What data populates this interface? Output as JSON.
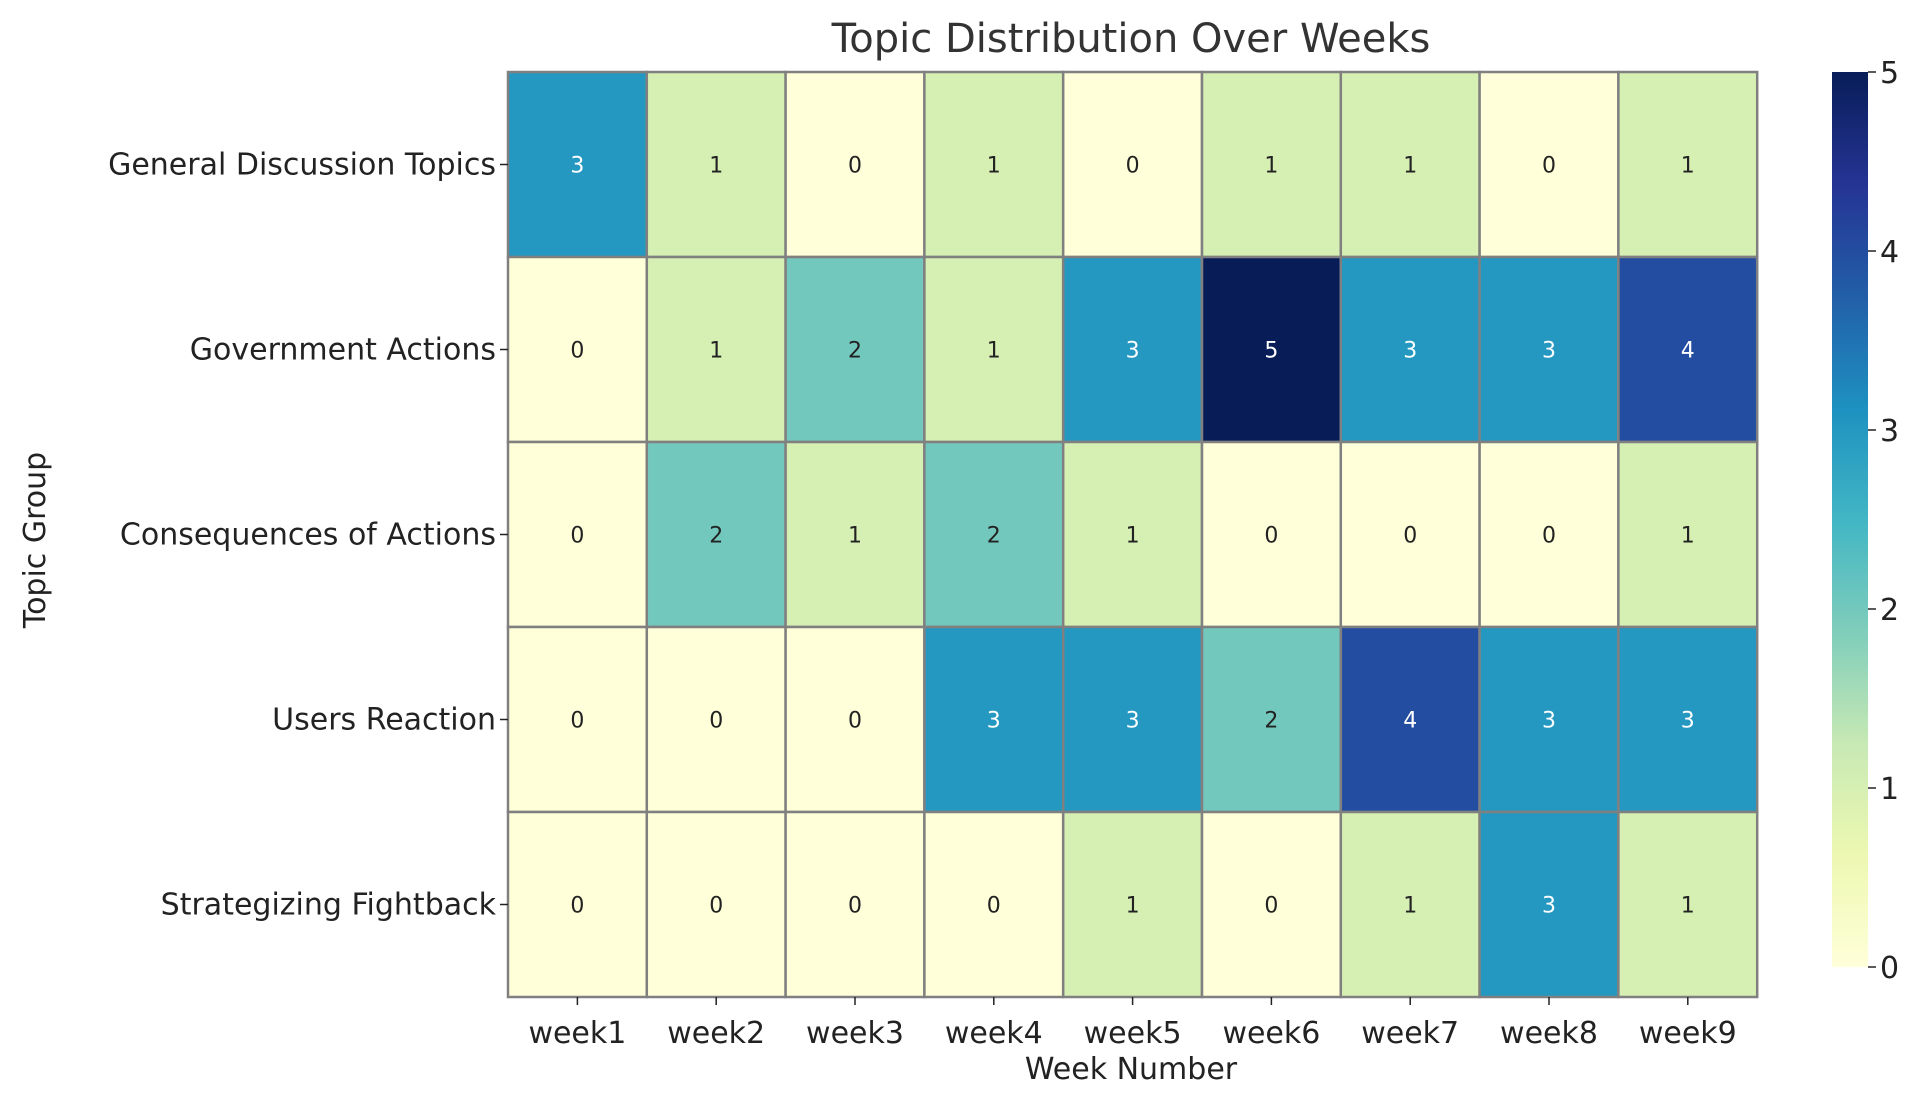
{
  "chart_data": {
    "type": "heatmap",
    "title": "Topic Distribution Over Weeks",
    "xlabel": "Week Number",
    "ylabel": "Topic Group",
    "x_categories": [
      "week1",
      "week2",
      "week3",
      "week4",
      "week5",
      "week6",
      "week7",
      "week8",
      "week9"
    ],
    "y_categories": [
      "General Discussion Topics",
      "Government Actions",
      "Consequences of Actions",
      "Users Reaction",
      "Strategizing Fightback"
    ],
    "values": [
      [
        3,
        1,
        0,
        1,
        0,
        1,
        1,
        0,
        1
      ],
      [
        0,
        1,
        2,
        1,
        3,
        5,
        3,
        3,
        4
      ],
      [
        0,
        2,
        1,
        2,
        1,
        0,
        0,
        0,
        1
      ],
      [
        0,
        0,
        0,
        3,
        3,
        2,
        4,
        3,
        3
      ],
      [
        0,
        0,
        0,
        0,
        1,
        0,
        1,
        3,
        1
      ]
    ],
    "colorbar": {
      "min": 0,
      "max": 5,
      "ticks": [
        0,
        1,
        2,
        3,
        4,
        5
      ]
    },
    "colormap": "YlGnBu",
    "colors": {
      "0": "#ffffd9",
      "1": "#d6efb3",
      "2": "#73c8bd",
      "3": "#2498c1",
      "4": "#234da0",
      "5": "#081d58",
      "cell_border": "#808080"
    },
    "cell_annotations": true,
    "grid": false
  }
}
